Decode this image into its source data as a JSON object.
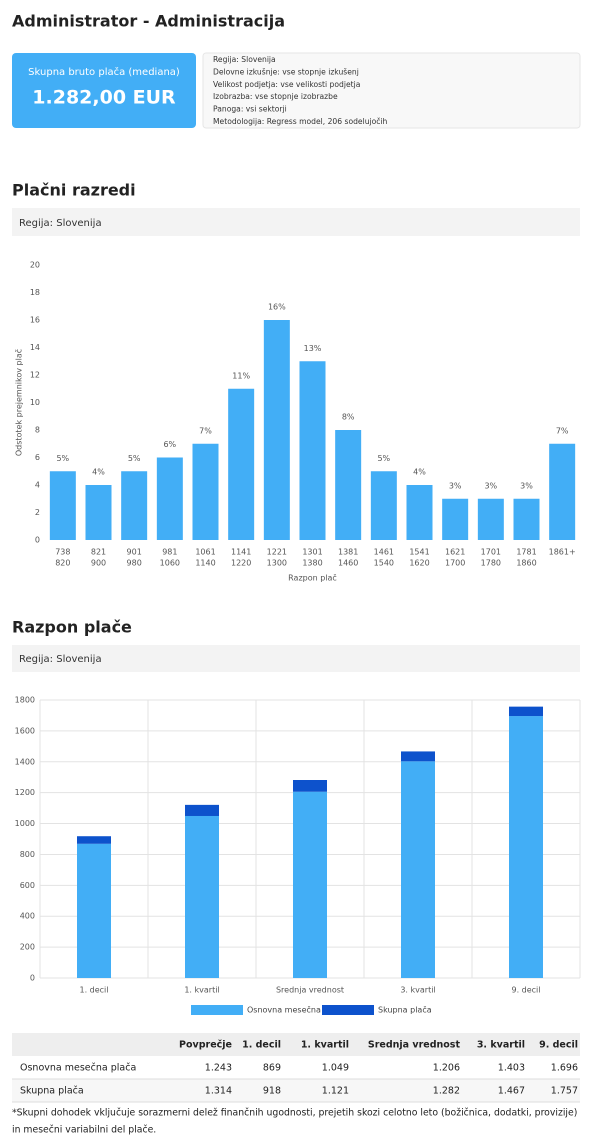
{
  "header": {
    "title": "Administrator - Administracija"
  },
  "summary": {
    "label": "Skupna bruto plača (mediana)",
    "value": "1.282,00 EUR"
  },
  "info": [
    "Regija: Slovenija",
    "Delovne izkušnje: vse stopnje izkušenj",
    "Velikost podjetja: vse velikosti podjetja",
    "Izobrazba: vse stopnje izobrazbe",
    "Panoga: vsi sektorji",
    "Metodologija: Regress model, 206 sodelujočih"
  ],
  "sections": [
    {
      "title": "Plačni razredi",
      "filter": "Regija: Slovenija"
    },
    {
      "title": "Razpon plače",
      "filter": "Regija: Slovenija"
    }
  ],
  "chart_data": [
    {
      "type": "bar",
      "ylabel": "Odstotek prejemnikov plač",
      "xlabel": "Razpon plač",
      "color": "#42aef6",
      "categories": [
        [
          "738",
          "820"
        ],
        [
          "821",
          "900"
        ],
        [
          "901",
          "980"
        ],
        [
          "981",
          "1060"
        ],
        [
          "1061",
          "1140"
        ],
        [
          "1141",
          "1220"
        ],
        [
          "1221",
          "1300"
        ],
        [
          "1301",
          "1380"
        ],
        [
          "1381",
          "1460"
        ],
        [
          "1461",
          "1540"
        ],
        [
          "1541",
          "1620"
        ],
        [
          "1621",
          "1700"
        ],
        [
          "1701",
          "1780"
        ],
        [
          "1781",
          "1860"
        ],
        [
          "1861+"
        ]
      ],
      "values": [
        5,
        4,
        5,
        6,
        7,
        11,
        16,
        13,
        8,
        5,
        4,
        3,
        3,
        3,
        7
      ],
      "value_labels": [
        "5%",
        "4%",
        "5%",
        "6%",
        "7%",
        "11%",
        "16%",
        "13%",
        "8%",
        "5%",
        "4%",
        "3%",
        "3%",
        "3%",
        "7%"
      ],
      "ylim": [
        0,
        20
      ],
      "yticks": [
        0,
        2,
        4,
        6,
        8,
        10,
        12,
        14,
        16,
        18,
        20
      ]
    },
    {
      "type": "stacked_bar",
      "grid": true,
      "categories": [
        "1. decil",
        "1. kvartil",
        "Srednja vrednost",
        "3. kvartil",
        "9. decil"
      ],
      "series": [
        {
          "name": "Osnovna mesečna plača",
          "color": "#42aef6",
          "values": [
            869,
            1049,
            1206,
            1403,
            1696
          ]
        },
        {
          "name": "Skupna plača",
          "color": "#0d52cc",
          "values": [
            49,
            72,
            76,
            64,
            61
          ]
        }
      ],
      "ylim": [
        0,
        1800
      ],
      "yticks": [
        0,
        200,
        400,
        600,
        800,
        1000,
        1200,
        1400,
        1600,
        1800
      ]
    }
  ],
  "table": {
    "header": [
      "",
      "Povprečje",
      "1. decil",
      "1. kvartil",
      "Srednja vrednost",
      "3. kvartil",
      "9. decil"
    ],
    "rows": [
      [
        "Osnovna mesečna plača",
        "1.243",
        "869",
        "1.049",
        "1.206",
        "1.403",
        "1.696"
      ],
      [
        "Skupna plača",
        "1.314",
        "918",
        "1.121",
        "1.282",
        "1.467",
        "1.757"
      ]
    ]
  },
  "footnote": [
    "*Skupni dohodek vključuje sorazmerni delež finančnih ugodnosti, prejetih skozi celotno leto (božičnica, dodatki, provizije)",
    "in mesečni variabilni del plače."
  ]
}
